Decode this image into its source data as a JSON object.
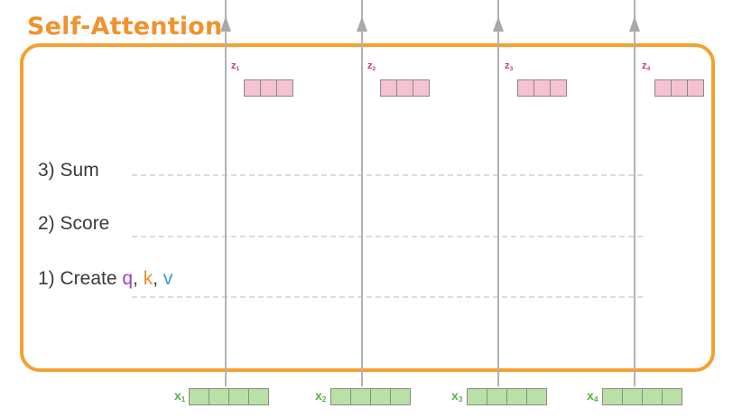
{
  "title": "Self-Attention",
  "steps": {
    "sum": "3) Sum",
    "score": "2) Score",
    "create_prefix": "1) Create ",
    "q": "q",
    "sep1": ", ",
    "k": "k",
    "sep2": ", ",
    "v": "v"
  },
  "outputs": [
    {
      "letter": "z",
      "index": "1"
    },
    {
      "letter": "z",
      "index": "2"
    },
    {
      "letter": "z",
      "index": "3"
    },
    {
      "letter": "z",
      "index": "4"
    }
  ],
  "inputs": [
    {
      "letter": "x",
      "index": "1"
    },
    {
      "letter": "x",
      "index": "2"
    },
    {
      "letter": "x",
      "index": "3"
    },
    {
      "letter": "x",
      "index": "4"
    }
  ],
  "colors": {
    "accent_orange": "#f5a030",
    "output_pink": "#f4c2d0",
    "output_label": "#d43a74",
    "input_green": "#b9e0a5",
    "input_label": "#5cb346",
    "query_purple": "#9b3fc2",
    "key_orange": "#f08a2b",
    "value_blue": "#3a9bd6"
  }
}
